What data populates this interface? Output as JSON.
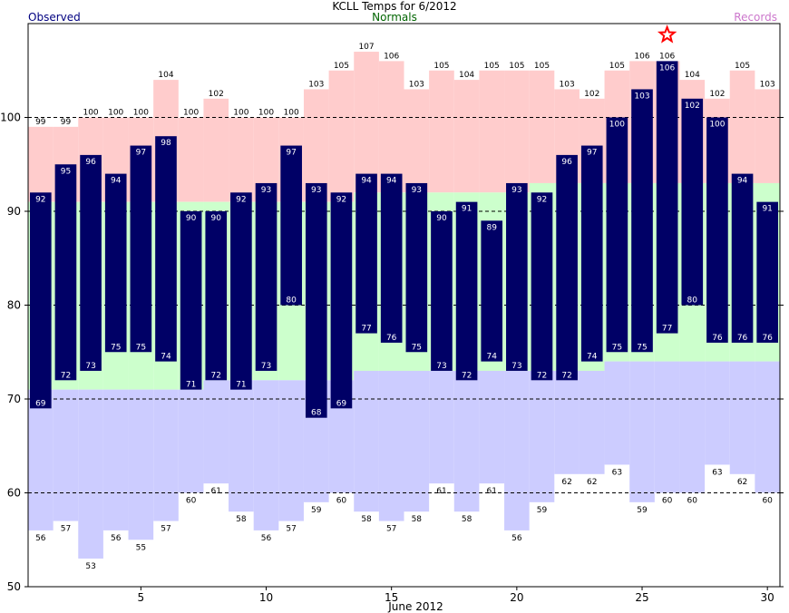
{
  "header": {
    "title": "KCLL Temps for 6/2012",
    "legend_observed": "Observed",
    "legend_normals": "Normals",
    "legend_records": "Records"
  },
  "colors": {
    "observed": "#000066",
    "record_high_band": "#ffcccc",
    "normal_band": "#ccffcc",
    "record_low_band": "#ccccff",
    "observed_label": "#000080",
    "normals_label": "#006400",
    "records_label": "#cc77cc",
    "star": "#ff0000"
  },
  "chart_data": {
    "type": "bar",
    "title": "KCLL Temps for 6/2012",
    "xlabel": "June 2012",
    "ylabel": "",
    "xlim": [
      0.5,
      30.5
    ],
    "ylim": [
      50,
      110
    ],
    "x_ticks": [
      5,
      10,
      15,
      20,
      25,
      30
    ],
    "y_ticks": [
      50,
      60,
      70,
      80,
      90,
      100
    ],
    "dashed_gridlines": [
      60,
      70,
      80,
      90,
      100
    ],
    "days": [
      1,
      2,
      3,
      4,
      5,
      6,
      7,
      8,
      9,
      10,
      11,
      12,
      13,
      14,
      15,
      16,
      17,
      18,
      19,
      20,
      21,
      22,
      23,
      24,
      25,
      26,
      27,
      28,
      29,
      30
    ],
    "series": [
      {
        "name": "Observed High",
        "values": [
          92,
          95,
          96,
          94,
          97,
          98,
          90,
          90,
          92,
          93,
          97,
          93,
          92,
          94,
          94,
          93,
          90,
          91,
          89,
          93,
          92,
          96,
          97,
          100,
          103,
          106,
          102,
          100,
          94,
          91
        ]
      },
      {
        "name": "Observed Low",
        "values": [
          69,
          72,
          73,
          75,
          75,
          74,
          71,
          72,
          71,
          73,
          80,
          68,
          69,
          77,
          76,
          75,
          73,
          72,
          74,
          73,
          72,
          72,
          74,
          75,
          75,
          77,
          80,
          76,
          76,
          76
        ]
      },
      {
        "name": "Record High",
        "values": [
          99,
          99,
          100,
          100,
          100,
          104,
          100,
          102,
          100,
          100,
          100,
          103,
          105,
          107,
          106,
          103,
          105,
          104,
          105,
          105,
          105,
          103,
          102,
          105,
          106,
          106,
          104,
          102,
          105,
          103
        ]
      },
      {
        "name": "Record Low",
        "values": [
          56,
          57,
          53,
          56,
          55,
          57,
          60,
          61,
          58,
          56,
          57,
          59,
          60,
          58,
          57,
          58,
          61,
          58,
          61,
          56,
          59,
          62,
          62,
          63,
          59,
          60,
          60,
          63,
          62,
          60
        ]
      },
      {
        "name": "Normal High",
        "values": [
          91,
          91,
          91,
          91,
          91,
          91,
          91,
          91,
          91,
          91,
          91,
          91,
          91,
          92,
          92,
          92,
          92,
          92,
          92,
          92,
          93,
          93,
          93,
          93,
          93,
          93,
          93,
          93,
          93,
          93
        ]
      },
      {
        "name": "Normal Low",
        "values": [
          71,
          71,
          71,
          71,
          71,
          71,
          71,
          72,
          72,
          72,
          72,
          72,
          72,
          73,
          73,
          73,
          73,
          73,
          73,
          73,
          73,
          73,
          73,
          74,
          74,
          74,
          74,
          74,
          74,
          74
        ]
      }
    ],
    "record_marker_days": [
      26
    ]
  }
}
